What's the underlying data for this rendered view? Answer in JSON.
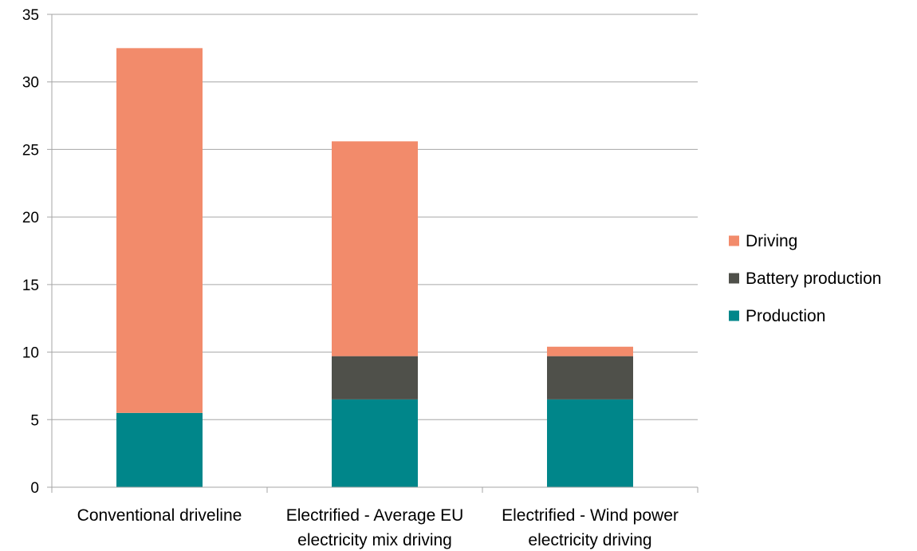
{
  "chart_data": {
    "type": "bar",
    "stacked": true,
    "title": "",
    "xlabel": "",
    "ylabel": "",
    "ylim": [
      0,
      35
    ],
    "yticks": [
      0,
      5,
      10,
      15,
      20,
      25,
      30,
      35
    ],
    "grid": true,
    "legend_position": "right",
    "categories": [
      [
        "Conventional driveline"
      ],
      [
        "Electrified - Average EU",
        "electricity mix driving"
      ],
      [
        "Electrified - Wind power",
        "electricity driving"
      ]
    ],
    "series": [
      {
        "name": "Production",
        "color": "#00868A",
        "values": [
          5.5,
          6.5,
          6.5
        ]
      },
      {
        "name": "Battery production",
        "color": "#4F504A",
        "values": [
          0,
          3.2,
          3.2
        ]
      },
      {
        "name": "Driving",
        "color": "#F28B6B",
        "values": [
          27.0,
          15.9,
          0.7
        ]
      }
    ],
    "legend_order": [
      "Driving",
      "Battery production",
      "Production"
    ],
    "grid_color": "#A6A6A6"
  }
}
